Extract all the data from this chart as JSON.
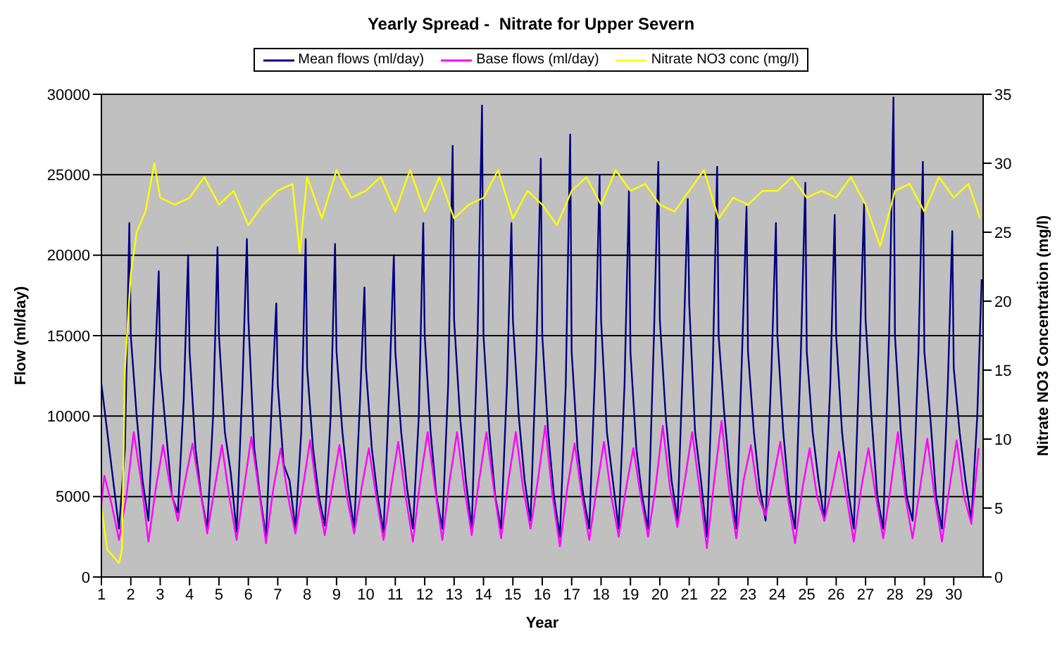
{
  "chart_data": {
    "type": "line",
    "title": "Yearly Spread -  Nitrate for Upper Severn",
    "xlabel": "Year",
    "ylabel": "Flow (ml/day)",
    "y2label": "Nitrate NO3 Concentration (mg/l)",
    "xlim": [
      1,
      31
    ],
    "xticks": [
      1,
      2,
      3,
      4,
      5,
      6,
      7,
      8,
      9,
      10,
      11,
      12,
      13,
      14,
      15,
      16,
      17,
      18,
      19,
      20,
      21,
      22,
      23,
      24,
      25,
      26,
      27,
      28,
      29,
      30
    ],
    "ylim": [
      0,
      30000
    ],
    "yticks": [
      0,
      5000,
      10000,
      15000,
      20000,
      25000,
      30000
    ],
    "y2lim": [
      0,
      35
    ],
    "y2ticks": [
      0,
      5,
      10,
      15,
      20,
      25,
      30,
      35
    ],
    "grid": "y",
    "legend": "top",
    "line_style": "solid",
    "series": [
      {
        "name": "Mean flows (ml/day)",
        "color": "#000080",
        "x": [
          1.0,
          1.2,
          1.4,
          1.6,
          1.8,
          1.95,
          2.0,
          2.2,
          2.4,
          2.6,
          2.8,
          2.95,
          3.0,
          3.2,
          3.4,
          3.6,
          3.8,
          3.95,
          4.0,
          4.2,
          4.4,
          4.6,
          4.8,
          4.95,
          5.0,
          5.2,
          5.4,
          5.6,
          5.8,
          5.95,
          6.0,
          6.2,
          6.4,
          6.6,
          6.8,
          6.95,
          7.0,
          7.2,
          7.4,
          7.6,
          7.8,
          7.95,
          8.0,
          8.2,
          8.4,
          8.6,
          8.8,
          8.95,
          9.0,
          9.2,
          9.4,
          9.6,
          9.8,
          9.95,
          10.0,
          10.2,
          10.4,
          10.6,
          10.8,
          10.95,
          11.0,
          11.2,
          11.4,
          11.6,
          11.8,
          11.95,
          12.0,
          12.2,
          12.4,
          12.6,
          12.8,
          12.95,
          13.0,
          13.2,
          13.4,
          13.6,
          13.8,
          13.95,
          14.0,
          14.2,
          14.4,
          14.6,
          14.8,
          14.95,
          15.0,
          15.2,
          15.4,
          15.6,
          15.8,
          15.95,
          16.0,
          16.2,
          16.4,
          16.6,
          16.8,
          16.95,
          17.0,
          17.2,
          17.4,
          17.6,
          17.8,
          17.95,
          18.0,
          18.2,
          18.4,
          18.6,
          18.8,
          18.95,
          19.0,
          19.2,
          19.4,
          19.6,
          19.8,
          19.95,
          20.0,
          20.2,
          20.4,
          20.6,
          20.8,
          20.95,
          21.0,
          21.2,
          21.4,
          21.6,
          21.8,
          21.95,
          22.0,
          22.2,
          22.4,
          22.6,
          22.8,
          22.95,
          23.0,
          23.2,
          23.4,
          23.6,
          23.8,
          23.95,
          24.0,
          24.2,
          24.4,
          24.6,
          24.8,
          24.95,
          25.0,
          25.2,
          25.4,
          25.6,
          25.8,
          25.95,
          26.0,
          26.2,
          26.4,
          26.6,
          26.8,
          26.95,
          27.0,
          27.2,
          27.4,
          27.6,
          27.8,
          27.95,
          28.0,
          28.2,
          28.4,
          28.6,
          28.8,
          28.95,
          29.0,
          29.2,
          29.4,
          29.6,
          29.8,
          29.95,
          30.0,
          30.2,
          30.4,
          30.6,
          30.8,
          30.95
        ],
        "values": [
          12000,
          9000,
          6000,
          3000,
          8000,
          22000,
          15000,
          10000,
          6000,
          3500,
          12000,
          19000,
          13000,
          9000,
          5000,
          4000,
          11000,
          20000,
          14000,
          8000,
          5000,
          3000,
          10000,
          20500,
          15000,
          9000,
          6500,
          2800,
          12000,
          21000,
          16000,
          8000,
          5000,
          2500,
          11000,
          17000,
          12000,
          7000,
          6000,
          3000,
          9000,
          21000,
          13000,
          8000,
          5000,
          3200,
          10000,
          20700,
          14000,
          9000,
          5500,
          3000,
          11000,
          18000,
          13000,
          8000,
          5000,
          2800,
          12000,
          20000,
          14000,
          9000,
          5500,
          3000,
          10000,
          22000,
          15000,
          9000,
          5000,
          3000,
          12000,
          26800,
          16000,
          10000,
          6000,
          3000,
          15000,
          29300,
          15000,
          9000,
          5000,
          3000,
          12000,
          22000,
          16000,
          10000,
          6000,
          3500,
          14000,
          26000,
          15000,
          9000,
          5000,
          2500,
          12000,
          27500,
          14000,
          8000,
          5000,
          3000,
          13000,
          25000,
          16000,
          9000,
          6000,
          3000,
          12000,
          24000,
          14000,
          8000,
          5000,
          3000,
          15000,
          25800,
          16000,
          10000,
          6000,
          3500,
          14000,
          23500,
          17000,
          9000,
          6000,
          2500,
          13000,
          25500,
          15000,
          10000,
          6000,
          3000,
          14000,
          23000,
          14000,
          9000,
          5500,
          3500,
          13000,
          22000,
          15000,
          9000,
          5000,
          3000,
          14000,
          24500,
          14000,
          9000,
          6000,
          3500,
          12000,
          22500,
          15000,
          9000,
          5500,
          3000,
          14000,
          23200,
          16000,
          10000,
          5000,
          3000,
          15000,
          29800,
          15000,
          9000,
          5000,
          3500,
          14000,
          25800,
          14000,
          10000,
          5000,
          3000,
          12000,
          21500,
          13000,
          9000,
          6000,
          3500,
          10000,
          18500
        ]
      },
      {
        "name": "Base flows (ml/day)",
        "color": "#ff00ff",
        "x": [
          1.0,
          1.1,
          1.35,
          1.6,
          1.85,
          2.1,
          2.35,
          2.6,
          2.85,
          3.1,
          3.35,
          3.6,
          3.85,
          4.1,
          4.35,
          4.6,
          4.85,
          5.1,
          5.35,
          5.6,
          5.85,
          6.1,
          6.35,
          6.6,
          6.85,
          7.1,
          7.35,
          7.6,
          7.85,
          8.1,
          8.35,
          8.6,
          8.85,
          9.1,
          9.35,
          9.6,
          9.85,
          10.1,
          10.35,
          10.6,
          10.85,
          11.1,
          11.35,
          11.6,
          11.85,
          12.1,
          12.35,
          12.6,
          12.85,
          13.1,
          13.35,
          13.6,
          13.85,
          14.1,
          14.35,
          14.6,
          14.85,
          15.1,
          15.35,
          15.6,
          15.85,
          16.1,
          16.35,
          16.6,
          16.85,
          17.1,
          17.35,
          17.6,
          17.85,
          18.1,
          18.35,
          18.6,
          18.85,
          19.1,
          19.35,
          19.6,
          19.85,
          20.1,
          20.35,
          20.6,
          20.85,
          21.1,
          21.35,
          21.6,
          21.85,
          22.1,
          22.35,
          22.6,
          22.85,
          23.1,
          23.35,
          23.6,
          23.85,
          24.1,
          24.35,
          24.6,
          24.85,
          25.1,
          25.35,
          25.6,
          25.85,
          26.1,
          26.35,
          26.6,
          26.85,
          27.1,
          27.35,
          27.6,
          27.85,
          28.1,
          28.35,
          28.6,
          28.85,
          29.1,
          29.35,
          29.6,
          29.85,
          30.1,
          30.35,
          30.6,
          30.85
        ],
        "values": [
          4500,
          6300,
          4500,
          2300,
          5000,
          9000,
          6000,
          2200,
          5500,
          8200,
          5500,
          3500,
          6000,
          8300,
          5500,
          2700,
          5500,
          8200,
          5000,
          2300,
          5500,
          8700,
          5500,
          2100,
          5500,
          8000,
          5000,
          2700,
          5500,
          8500,
          5000,
          2600,
          5500,
          8200,
          5000,
          2700,
          5500,
          8000,
          5000,
          2300,
          5500,
          8400,
          5000,
          2200,
          6000,
          9000,
          5500,
          2300,
          6000,
          9000,
          5500,
          2600,
          6000,
          9000,
          5500,
          2400,
          6000,
          9000,
          5500,
          3000,
          6000,
          9400,
          5000,
          1900,
          5500,
          8300,
          5000,
          2300,
          5500,
          8400,
          5000,
          2500,
          5500,
          8000,
          5000,
          2500,
          5500,
          9400,
          5500,
          3100,
          6000,
          9000,
          5500,
          1800,
          6000,
          9700,
          5500,
          2400,
          6000,
          8200,
          5000,
          3800,
          6000,
          8400,
          5000,
          2100,
          5500,
          8000,
          5000,
          3500,
          5500,
          7800,
          5000,
          2200,
          5500,
          8000,
          5000,
          2400,
          5500,
          9000,
          5000,
          2400,
          5500,
          8600,
          5000,
          2200,
          5500,
          8500,
          5000,
          3300,
          8000
        ]
      },
      {
        "name": "Nitrate NO3 conc (mg/l)",
        "color": "#ffff00",
        "axis": "y2",
        "x": [
          1.0,
          1.2,
          1.4,
          1.6,
          1.7,
          1.8,
          2.0,
          2.2,
          2.5,
          2.8,
          3.0,
          3.5,
          4.0,
          4.5,
          5.0,
          5.5,
          6.0,
          6.5,
          7.0,
          7.5,
          7.75,
          8.0,
          8.5,
          9.0,
          9.5,
          10.0,
          10.5,
          11.0,
          11.5,
          12.0,
          12.5,
          13.0,
          13.5,
          14.0,
          14.5,
          15.0,
          15.5,
          16.0,
          16.5,
          17.0,
          17.5,
          18.0,
          18.5,
          19.0,
          19.5,
          20.0,
          20.5,
          21.0,
          21.5,
          22.0,
          22.5,
          23.0,
          23.5,
          24.0,
          24.5,
          25.0,
          25.5,
          26.0,
          26.5,
          27.0,
          27.5,
          28.0,
          28.5,
          29.0,
          29.5,
          30.0,
          30.5,
          30.9
        ],
        "values": [
          5,
          2,
          1.5,
          1,
          2,
          15,
          22,
          25,
          26.5,
          30,
          27.5,
          27,
          27.5,
          29,
          27,
          28,
          25.5,
          27,
          28,
          28.5,
          23.5,
          29,
          26,
          29.5,
          27.5,
          28,
          29,
          26.5,
          29.5,
          26.5,
          29,
          26,
          27,
          27.5,
          29.5,
          26,
          28,
          27,
          25.5,
          28,
          29,
          27,
          29.5,
          28,
          28.5,
          27,
          26.5,
          28,
          29.5,
          26,
          27.5,
          27,
          28,
          28,
          29,
          27.5,
          28,
          27.5,
          29,
          27,
          24,
          28,
          28.5,
          26.5,
          29,
          27.5,
          28.5,
          26
        ]
      }
    ]
  }
}
